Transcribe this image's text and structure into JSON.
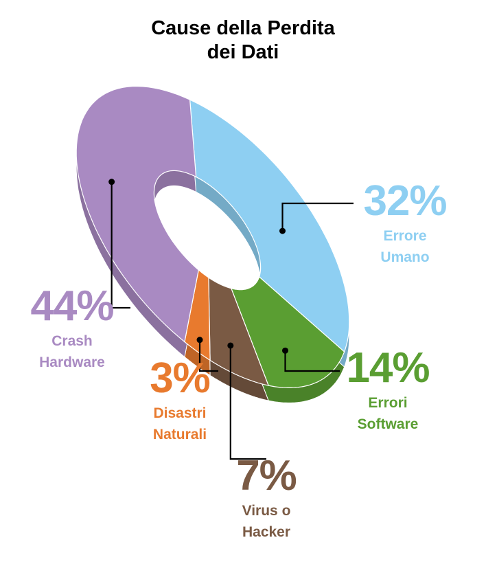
{
  "chart_data": {
    "type": "pie",
    "title": "Cause della Perdita dei Dati",
    "categories": [
      "Errore Umano",
      "Errori Software",
      "Virus o Hacker",
      "Disastri Naturali",
      "Crash Hardware"
    ],
    "values": [
      32,
      14,
      7,
      3,
      44
    ],
    "value_labels": [
      "32%",
      "14%",
      "7%",
      "3%",
      "44%"
    ],
    "colors": [
      "#8ecff2",
      "#5a9e32",
      "#7a5a44",
      "#e87a2e",
      "#a98ac2"
    ]
  }
}
